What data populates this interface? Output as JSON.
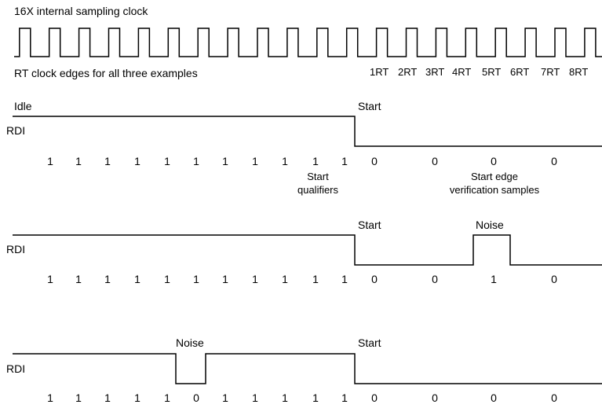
{
  "clock": {
    "title": "16X internal sampling clock",
    "caption": "RT clock edges for all three examples",
    "rt_labels": [
      "1RT",
      "2RT",
      "3RT",
      "4RT",
      "5RT",
      "6RT",
      "7RT",
      "8RT"
    ]
  },
  "example1": {
    "idle_label": "Idle",
    "start_label": "Start",
    "signal_label": "RDI",
    "samples": [
      "1",
      "1",
      "1",
      "1",
      "1",
      "1",
      "1",
      "1",
      "1",
      "1",
      "1",
      "0",
      "0",
      "0",
      "0"
    ],
    "start_qualifiers_line1": "Start",
    "start_qualifiers_line2": "qualifiers",
    "verification_line1": "Start edge",
    "verification_line2": "verification samples"
  },
  "example2": {
    "start_label": "Start",
    "noise_label": "Noise",
    "signal_label": "RDI",
    "samples": [
      "1",
      "1",
      "1",
      "1",
      "1",
      "1",
      "1",
      "1",
      "1",
      "1",
      "1",
      "0",
      "0",
      "1",
      "0"
    ]
  },
  "example3": {
    "noise_label": "Noise",
    "start_label": "Start",
    "signal_label": "RDI",
    "samples": [
      "1",
      "1",
      "1",
      "1",
      "1",
      "0",
      "1",
      "1",
      "1",
      "1",
      "1",
      "0",
      "0",
      "0",
      "0"
    ]
  }
}
